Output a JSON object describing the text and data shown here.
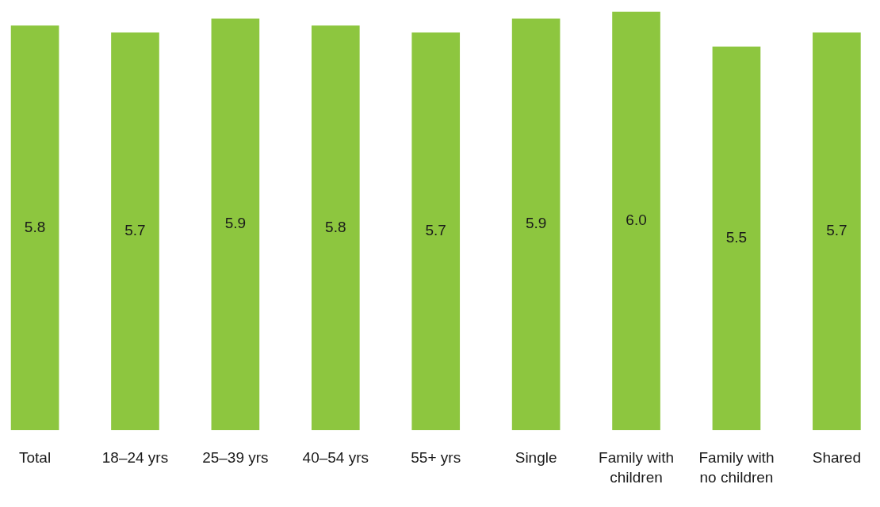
{
  "chart_data": {
    "type": "bar",
    "categories": [
      "Total",
      "18–24 yrs",
      "25–39 yrs",
      "40–54 yrs",
      "55+ yrs",
      "Single",
      "Family with children",
      "Family with no children",
      "Shared"
    ],
    "values": [
      5.8,
      5.7,
      5.9,
      5.8,
      5.7,
      5.9,
      6.0,
      5.5,
      5.7
    ],
    "value_labels": [
      "5.8",
      "5.7",
      "5.9",
      "5.8",
      "5.7",
      "5.9",
      "6.0",
      "5.5",
      "5.7"
    ],
    "color": "#8dc63f",
    "ylim": [
      0,
      6
    ],
    "grid": false,
    "legend": false,
    "tick_labels": "x"
  }
}
